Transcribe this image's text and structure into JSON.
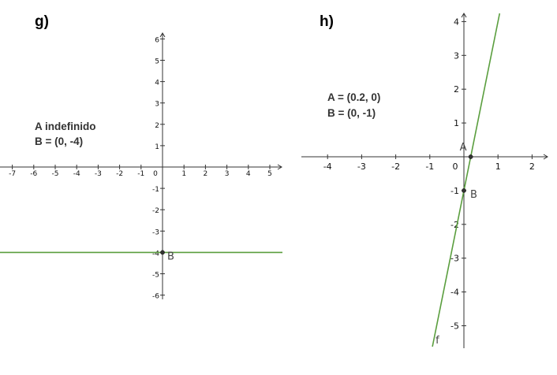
{
  "chart_data": [
    {
      "type": "line",
      "panel_label": "g)",
      "info_lines": [
        "A indefinido",
        "B = (0, -4)"
      ],
      "xlim": [
        -7,
        5
      ],
      "ylim": [
        -6,
        6
      ],
      "x_ticks": [
        -7,
        -6,
        -5,
        -4,
        -3,
        -2,
        -1,
        0,
        1,
        2,
        3,
        4,
        5
      ],
      "y_ticks": [
        -6,
        -5,
        -4,
        -3,
        -2,
        -1,
        1,
        2,
        3,
        4,
        5,
        6
      ],
      "lines": [
        {
          "kind": "horizontal",
          "y": -4,
          "color": "#5a9e3e"
        }
      ],
      "points": [
        {
          "label": "B",
          "x": 0,
          "y": -4
        }
      ]
    },
    {
      "type": "line",
      "panel_label": "h)",
      "info_lines": [
        "A = (0.2, 0)",
        "B = (0, -1)"
      ],
      "xlim": [
        -4,
        2
      ],
      "ylim": [
        -5,
        4
      ],
      "x_ticks": [
        -4,
        -3,
        -2,
        -1,
        0,
        1,
        2
      ],
      "y_ticks": [
        -5,
        -4,
        -3,
        -2,
        -1,
        1,
        2,
        3,
        4
      ],
      "lines": [
        {
          "kind": "slope",
          "name": "f",
          "slope": 5,
          "intercept": -1,
          "color": "#5a9e3e"
        }
      ],
      "points": [
        {
          "label": "A",
          "x": 0.2,
          "y": 0
        },
        {
          "label": "B",
          "x": 0,
          "y": -1
        }
      ]
    }
  ]
}
